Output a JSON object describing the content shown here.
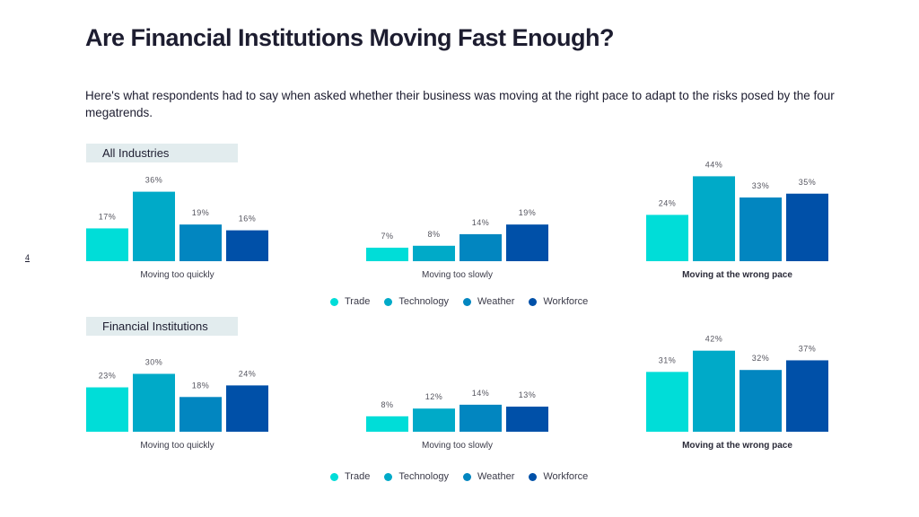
{
  "page": {
    "title": "Are Financial Institutions Moving Fast Enough?",
    "subtitle": "Here's what respondents had to say when asked whether their business was moving at the right pace to adapt to the risks posed by the four megatrends.",
    "page_number": "4"
  },
  "colors": {
    "Trade": "#00ddd8",
    "Technology": "#00aac8",
    "Weather": "#0286c0",
    "Workforce": "#0050a8"
  },
  "chart_data": [
    {
      "type": "bar",
      "title": "All Industries",
      "series_names": [
        "Trade",
        "Technology",
        "Weather",
        "Workforce"
      ],
      "legend": [
        "Trade",
        "Technology",
        "Weather",
        "Workforce"
      ],
      "groups": [
        {
          "category": "Moving too quickly",
          "bold": false,
          "values": [
            17,
            36,
            19,
            16
          ],
          "labels": [
            "17%",
            "36%",
            "19%",
            "16%"
          ]
        },
        {
          "category": "Moving too slowly",
          "bold": false,
          "values": [
            7,
            8,
            14,
            19
          ],
          "labels": [
            "7%",
            "8%",
            "14%",
            "19%"
          ]
        },
        {
          "category": "Moving at the wrong pace",
          "bold": true,
          "values": [
            24,
            44,
            33,
            35
          ],
          "labels": [
            "24%",
            "44%",
            "33%",
            "35%"
          ]
        }
      ]
    },
    {
      "type": "bar",
      "title": "Financial Institutions",
      "series_names": [
        "Trade",
        "Technology",
        "Weather",
        "Workforce"
      ],
      "legend": [
        "Trade",
        "Technology",
        "Weather",
        "Workforce"
      ],
      "groups": [
        {
          "category": "Moving too quickly",
          "bold": false,
          "values": [
            23,
            30,
            18,
            24
          ],
          "labels": [
            "23%",
            "30%",
            "18%",
            "24%"
          ]
        },
        {
          "category": "Moving too slowly",
          "bold": false,
          "values": [
            8,
            12,
            14,
            13
          ],
          "labels": [
            "8%",
            "12%",
            "14%",
            "13%"
          ]
        },
        {
          "category": "Moving at the wrong pace",
          "bold": true,
          "values": [
            31,
            42,
            32,
            37
          ],
          "labels": [
            "31%",
            "42%",
            "32%",
            "37%"
          ]
        }
      ]
    }
  ]
}
